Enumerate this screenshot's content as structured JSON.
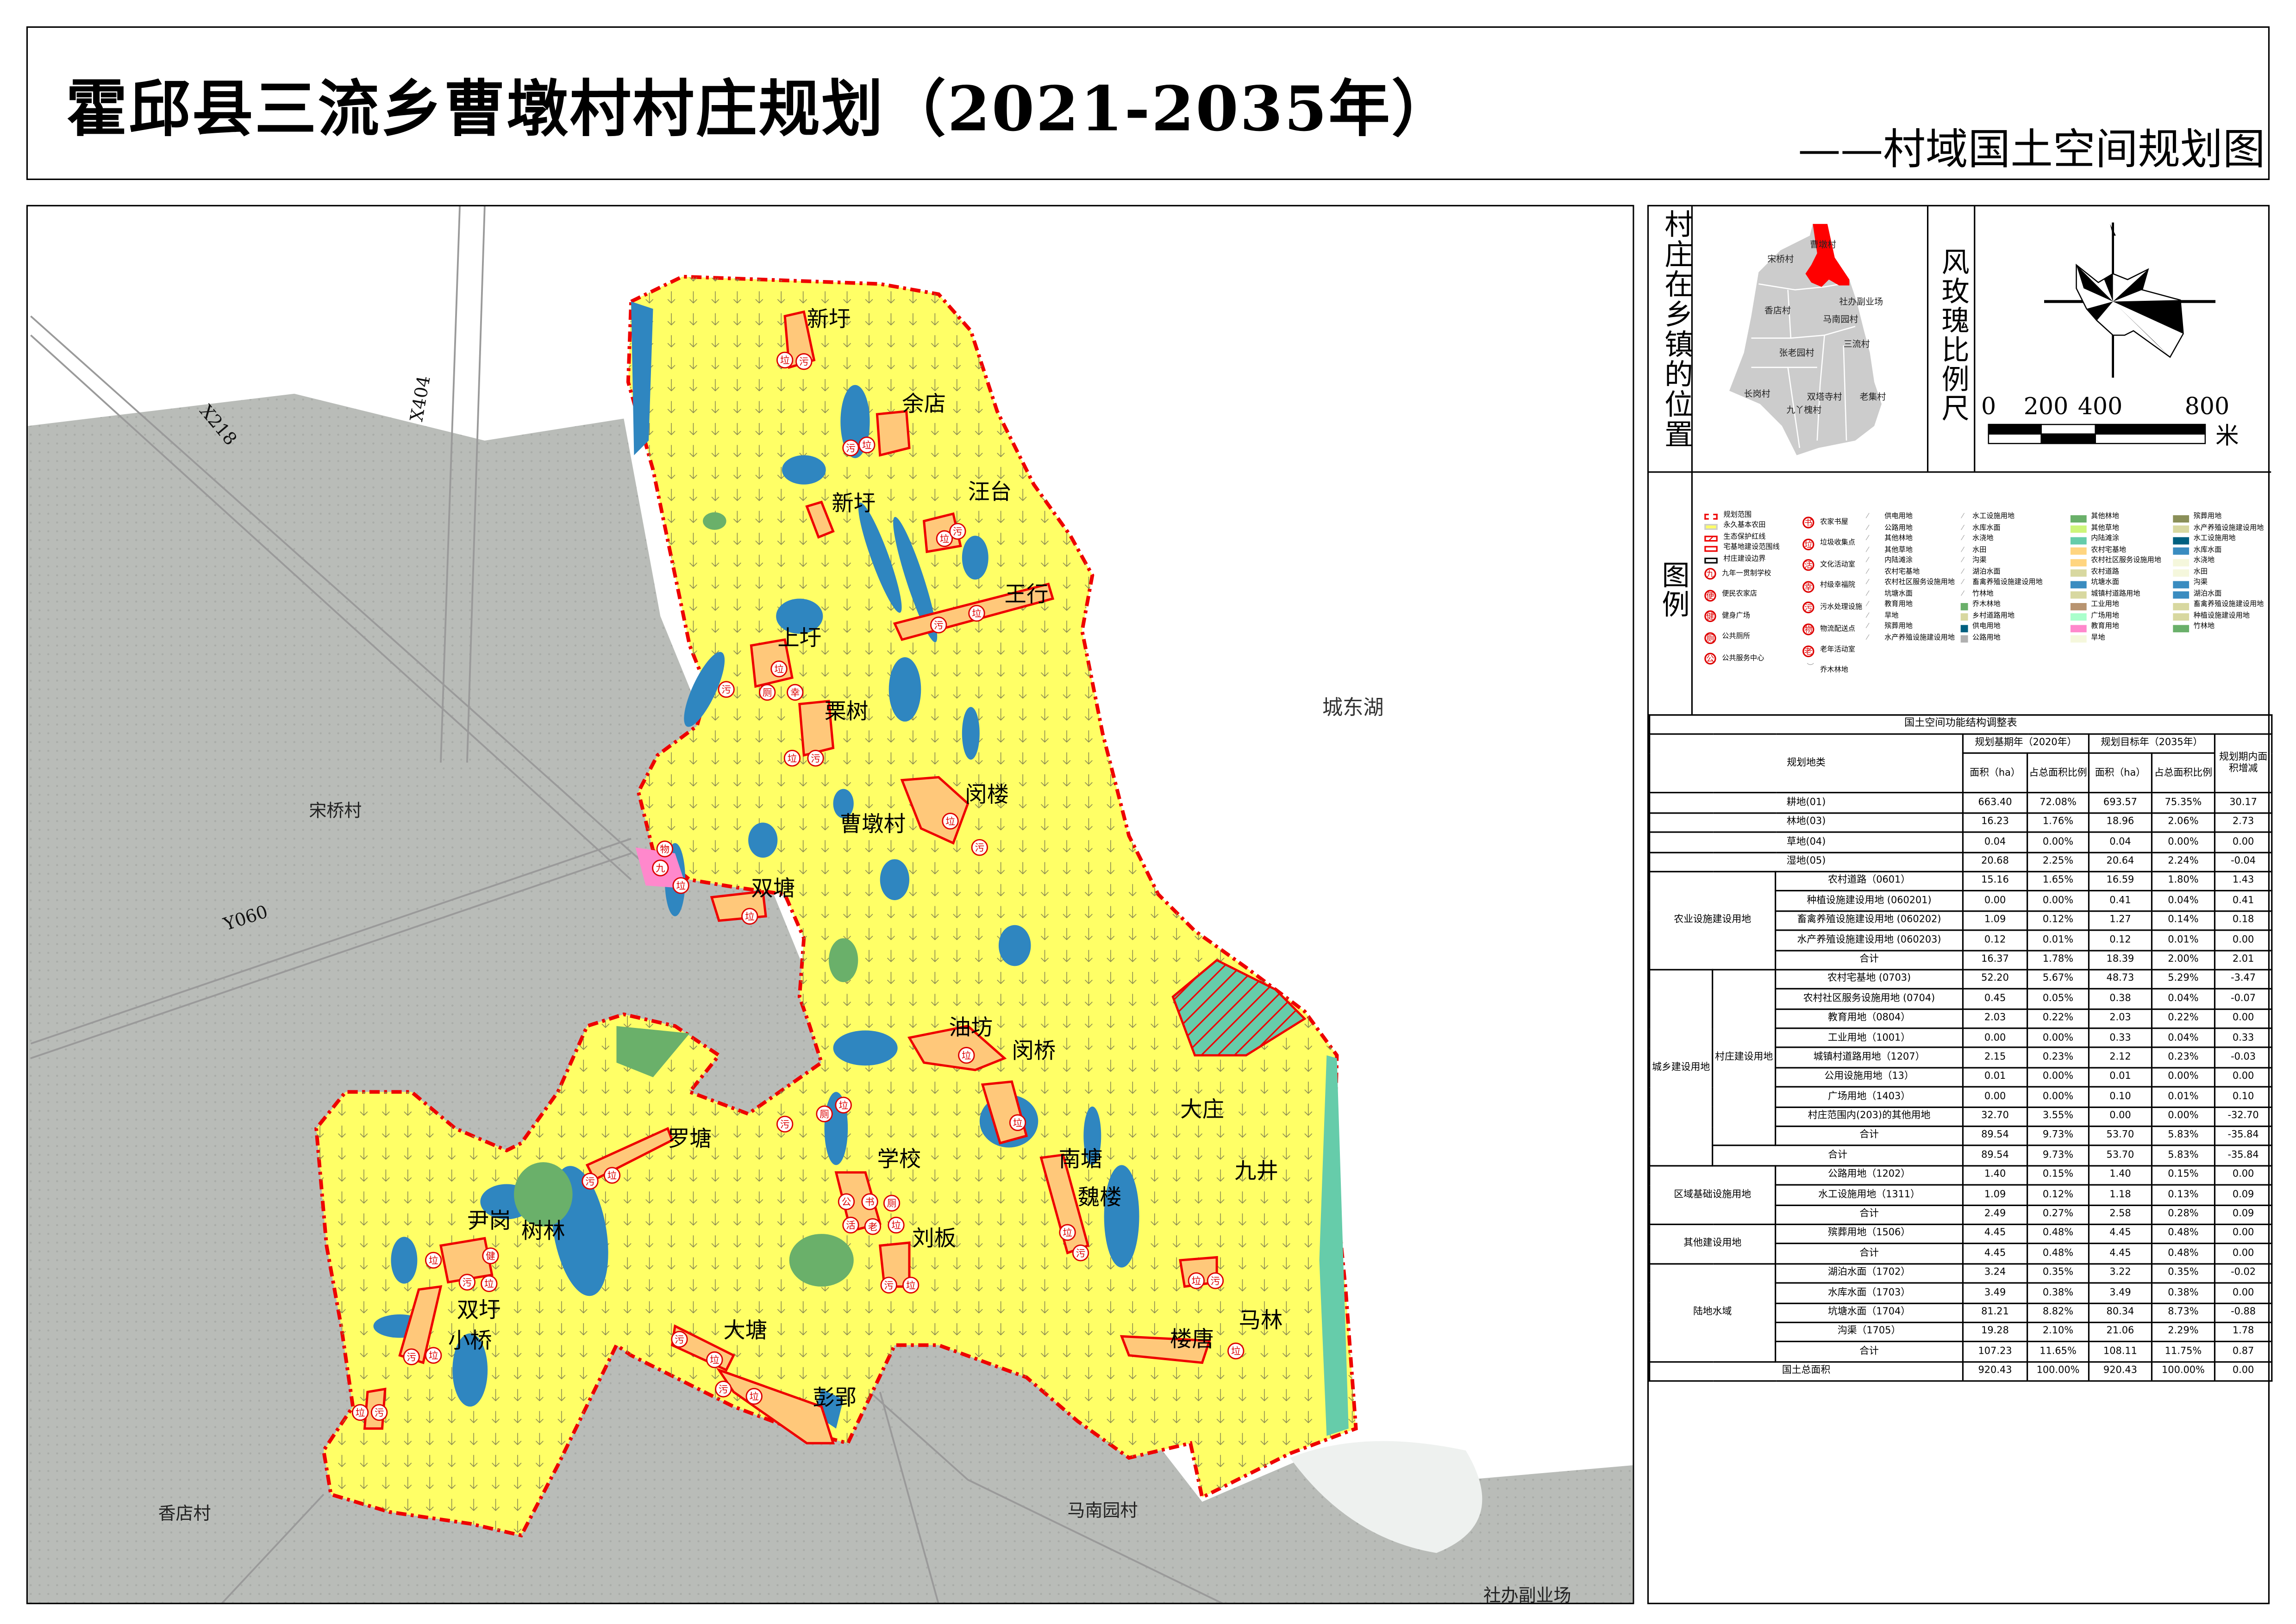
{
  "title": {
    "main": "霍邱县三流乡曹墩村村庄规划（2021-2035年）",
    "sub": "——村域国土空间规划图"
  },
  "location": {
    "label": "村庄在乡镇的位置",
    "villages": [
      "曹墩村",
      "宋桥村",
      "社办副业场",
      "香店村",
      "马南园村",
      "三流村",
      "张老园村",
      "长岗村",
      "双塔寺村",
      "老集村",
      "九丫槐村"
    ],
    "highlight_color": "#ff0000",
    "base_color": "#cccccc"
  },
  "windrose": {
    "label": "风玫瑰比例尺",
    "scale_ticks": [
      "0",
      "200",
      "400",
      "800"
    ],
    "unit": "米"
  },
  "legend": {
    "label": "图例",
    "boundaries": [
      "规划范围",
      "永久基本农田",
      "生态保护红线",
      "宅基地建设范围线",
      "村庄建设边界"
    ],
    "facilities_a": [
      {
        "char": "九",
        "label": "九年一贯制学校"
      },
      {
        "char": "便",
        "label": "便民农家店"
      },
      {
        "char": "健",
        "label": "健身广场"
      },
      {
        "char": "厕",
        "label": "公共厕所"
      },
      {
        "char": "公",
        "label": "公共服务中心"
      }
    ],
    "facilities_b": [
      {
        "char": "书",
        "label": "农家书屋"
      },
      {
        "char": "垃",
        "label": "垃圾收集点"
      },
      {
        "char": "活",
        "label": "文化活动室"
      },
      {
        "char": "幸",
        "label": "村级幸福院"
      },
      {
        "char": "污",
        "label": "污水处理设施"
      },
      {
        "char": "物",
        "label": "物流配送点"
      },
      {
        "char": "老",
        "label": "老年活动室"
      }
    ],
    "tree_forest": "乔木林地",
    "pattern_col1": [
      "供电用地",
      "公路用地",
      "其他林地",
      "其他草地",
      "内陆滩涂",
      "农村宅基地",
      "农村社区服务设施用地",
      "坑塘水面",
      "教育用地",
      "旱地",
      "殡葬用地",
      "水产养殖设施建设用地"
    ],
    "pattern_col2": [
      {
        "label": "水工设施用地"
      },
      {
        "label": "水库水面"
      },
      {
        "label": "水浇地"
      },
      {
        "label": "水田"
      },
      {
        "label": "沟渠"
      },
      {
        "label": "湖泊水面"
      },
      {
        "label": "畜禽养殖设施建设用地"
      },
      {
        "label": "竹林地"
      },
      {
        "label": "乔木林地",
        "color": "#6ab06a"
      },
      {
        "label": "乡村道路用地",
        "color": "#d8d8a0"
      },
      {
        "label": "供电用地",
        "color": "#006080"
      },
      {
        "label": "公路用地",
        "color": "#b0b0b0"
      }
    ],
    "color_col1": [
      {
        "label": "其他林地",
        "color": "#6ab06a"
      },
      {
        "label": "其他草地",
        "color": "#cdf57a"
      },
      {
        "label": "内陆滩涂",
        "color": "#66ccaa"
      },
      {
        "label": "农村宅基地",
        "color": "#ffd580"
      },
      {
        "label": "农村社区服务设施用地",
        "color": "#ffd580"
      },
      {
        "label": "农村道路",
        "color": "#d8d8a0"
      },
      {
        "label": "坑塘水面",
        "color": "#3a8cc0"
      },
      {
        "label": "城镇村道路用地",
        "color": "#d8d8a0"
      },
      {
        "label": "工业用地",
        "color": "#b89470"
      },
      {
        "label": "广场用地",
        "color": "#aaffcc"
      },
      {
        "label": "教育用地",
        "color": "#ff88cc"
      },
      {
        "label": "旱地",
        "color": "#f5f7dc"
      }
    ],
    "color_col2": [
      {
        "label": "殡葬用地",
        "color": "#8a8f58"
      },
      {
        "label": "水产养殖设施建设用地",
        "color": "#d8d8a0"
      },
      {
        "label": "水工设施用地",
        "color": "#006080"
      },
      {
        "label": "水库水面",
        "color": "#3a8cc0"
      },
      {
        "label": "水浇地",
        "color": "#f5f7dc"
      },
      {
        "label": "水田",
        "color": "#f5f7dc"
      },
      {
        "label": "沟渠",
        "color": "#3a8cc0"
      },
      {
        "label": "湖泊水面",
        "color": "#3a8cc0"
      },
      {
        "label": "畜禽养殖设施建设用地",
        "color": "#d8d8a0"
      },
      {
        "label": "种植设施建设用地",
        "color": "#d8d8a0"
      },
      {
        "label": "竹林地",
        "color": "#6ab06a"
      }
    ]
  },
  "map": {
    "settlements": [
      "新圩",
      "余店",
      "新圩",
      "汪台",
      "王行",
      "上圩",
      "栗树",
      "曹墩村",
      "闵楼",
      "双塘",
      "油坊",
      "闵桥",
      "大庄",
      "九井",
      "南塘",
      "魏楼",
      "学校",
      "刘板",
      "罗塘",
      "树林",
      "尹岗",
      "双圩",
      "小桥",
      "大塘",
      "彭郢",
      "楼唐",
      "马林"
    ],
    "neighbors": [
      "宋桥村",
      "香店村",
      "马南园村",
      "社办副业场"
    ],
    "lake": "城东湖",
    "roads": [
      "X218",
      "X404",
      "Y060"
    ],
    "markers": [
      "垃",
      "污",
      "污",
      "垃",
      "垃",
      "污",
      "垃",
      "污",
      "垃",
      "污",
      "厕",
      "幸",
      "垃",
      "污",
      "垃",
      "污",
      "物",
      "九",
      "垃",
      "垃",
      "垃",
      "垃",
      "垃",
      "污",
      "垃",
      "污",
      "垃",
      "公",
      "书",
      "厕",
      "活",
      "老",
      "垃",
      "污",
      "垃",
      "污",
      "垃",
      "污",
      "厕",
      "垃",
      "垃",
      "健",
      "污",
      "垃",
      "污",
      "垃",
      "垃",
      "污",
      "污",
      "垃",
      "污",
      "垃"
    ],
    "colors": {
      "farmland": "#ffff66",
      "boundary": "#ee0000",
      "water": "#2f86c0",
      "settlement": "#ffc87a",
      "forest": "#6ab06a",
      "satellite": "#b9bcb8"
    }
  },
  "table": {
    "title": "国土空间功能结构调整表",
    "header": {
      "category": "规划地类",
      "base_year": "规划基期年（2020年）",
      "target_year": "规划目标年（2035年）",
      "change": "规划期内面积增减",
      "area": "面积（ha）",
      "ratio": "占总面积比例"
    },
    "rows": [
      {
        "group": "",
        "sub": "",
        "name": "耕地(01)",
        "v": [
          "663.40",
          "72.08%",
          "693.57",
          "75.35%",
          "30.17"
        ]
      },
      {
        "group": "",
        "sub": "",
        "name": "林地(03)",
        "v": [
          "16.23",
          "1.76%",
          "18.96",
          "2.06%",
          "2.73"
        ]
      },
      {
        "group": "",
        "sub": "",
        "name": "草地(04)",
        "v": [
          "0.04",
          "0.00%",
          "0.04",
          "0.00%",
          "0.00"
        ]
      },
      {
        "group": "",
        "sub": "",
        "name": "湿地(05)",
        "v": [
          "20.68",
          "2.25%",
          "20.64",
          "2.24%",
          "-0.04"
        ]
      },
      {
        "group": "农业设施建设用地",
        "sub": "",
        "name": "农村道路（0601）",
        "v": [
          "15.16",
          "1.65%",
          "16.59",
          "1.80%",
          "1.43"
        ]
      },
      {
        "group": "农业设施建设用地",
        "sub": "",
        "name": "种植设施建设用地 (060201)",
        "v": [
          "0.00",
          "0.00%",
          "0.41",
          "0.04%",
          "0.41"
        ]
      },
      {
        "group": "农业设施建设用地",
        "sub": "",
        "name": "畜禽养殖设施建设用地 (060202)",
        "v": [
          "1.09",
          "0.12%",
          "1.27",
          "0.14%",
          "0.18"
        ]
      },
      {
        "group": "农业设施建设用地",
        "sub": "",
        "name": "水产养殖设施建设用地 (060203)",
        "v": [
          "0.12",
          "0.01%",
          "0.12",
          "0.01%",
          "0.00"
        ]
      },
      {
        "group": "农业设施建设用地",
        "sub": "",
        "name": "合计",
        "v": [
          "16.37",
          "1.78%",
          "18.39",
          "2.00%",
          "2.01"
        ]
      },
      {
        "group": "城乡建设用地",
        "sub": "村庄建设用地",
        "name": "农村宅基地 (0703)",
        "v": [
          "52.20",
          "5.67%",
          "48.73",
          "5.29%",
          "-3.47"
        ]
      },
      {
        "group": "城乡建设用地",
        "sub": "村庄建设用地",
        "name": "农村社区服务设施用地 (0704)",
        "v": [
          "0.45",
          "0.05%",
          "0.38",
          "0.04%",
          "-0.07"
        ]
      },
      {
        "group": "城乡建设用地",
        "sub": "村庄建设用地",
        "name": "教育用地（0804）",
        "v": [
          "2.03",
          "0.22%",
          "2.03",
          "0.22%",
          "0.00"
        ]
      },
      {
        "group": "城乡建设用地",
        "sub": "村庄建设用地",
        "name": "工业用地（1001）",
        "v": [
          "0.00",
          "0.00%",
          "0.33",
          "0.04%",
          "0.33"
        ]
      },
      {
        "group": "城乡建设用地",
        "sub": "村庄建设用地",
        "name": "城镇村道路用地（1207）",
        "v": [
          "2.15",
          "0.23%",
          "2.12",
          "0.23%",
          "-0.03"
        ]
      },
      {
        "group": "城乡建设用地",
        "sub": "村庄建设用地",
        "name": "公用设施用地（13）",
        "v": [
          "0.01",
          "0.00%",
          "0.01",
          "0.00%",
          "0.00"
        ]
      },
      {
        "group": "城乡建设用地",
        "sub": "村庄建设用地",
        "name": "广场用地（1403）",
        "v": [
          "0.00",
          "0.00%",
          "0.10",
          "0.01%",
          "0.10"
        ]
      },
      {
        "group": "城乡建设用地",
        "sub": "村庄建设用地",
        "name": "村庄范围内(203)的其他用地",
        "v": [
          "32.70",
          "3.55%",
          "0.00",
          "0.00%",
          "-32.70"
        ]
      },
      {
        "group": "城乡建设用地",
        "sub": "村庄建设用地",
        "name": "合计",
        "v": [
          "89.54",
          "9.73%",
          "53.70",
          "5.83%",
          "-35.84"
        ]
      },
      {
        "group": "城乡建设用地",
        "sub": "",
        "name": "合计",
        "v": [
          "89.54",
          "9.73%",
          "53.70",
          "5.83%",
          "-35.84"
        ]
      },
      {
        "group": "区域基础设施用地",
        "sub": "",
        "name": "公路用地（1202）",
        "v": [
          "1.40",
          "0.15%",
          "1.40",
          "0.15%",
          "0.00"
        ]
      },
      {
        "group": "区域基础设施用地",
        "sub": "",
        "name": "水工设施用地（1311）",
        "v": [
          "1.09",
          "0.12%",
          "1.18",
          "0.13%",
          "0.09"
        ]
      },
      {
        "group": "区域基础设施用地",
        "sub": "",
        "name": "合计",
        "v": [
          "2.49",
          "0.27%",
          "2.58",
          "0.28%",
          "0.09"
        ]
      },
      {
        "group": "其他建设用地",
        "sub": "",
        "name": "殡葬用地（1506）",
        "v": [
          "4.45",
          "0.48%",
          "4.45",
          "0.48%",
          "0.00"
        ]
      },
      {
        "group": "其他建设用地",
        "sub": "",
        "name": "合计",
        "v": [
          "4.45",
          "0.48%",
          "4.45",
          "0.48%",
          "0.00"
        ]
      },
      {
        "group": "陆地水域",
        "sub": "",
        "name": "湖泊水面（1702）",
        "v": [
          "3.24",
          "0.35%",
          "3.22",
          "0.35%",
          "-0.02"
        ]
      },
      {
        "group": "陆地水域",
        "sub": "",
        "name": "水库水面（1703）",
        "v": [
          "3.49",
          "0.38%",
          "3.49",
          "0.38%",
          "0.00"
        ]
      },
      {
        "group": "陆地水域",
        "sub": "",
        "name": "坑塘水面（1704）",
        "v": [
          "81.21",
          "8.82%",
          "80.34",
          "8.73%",
          "-0.88"
        ]
      },
      {
        "group": "陆地水域",
        "sub": "",
        "name": "沟渠（1705）",
        "v": [
          "19.28",
          "2.10%",
          "21.06",
          "2.29%",
          "1.78"
        ]
      },
      {
        "group": "陆地水域",
        "sub": "",
        "name": "合计",
        "v": [
          "107.23",
          "11.65%",
          "108.11",
          "11.75%",
          "0.87"
        ]
      },
      {
        "group": "",
        "sub": "",
        "name": "国土总面积",
        "v": [
          "920.43",
          "100.00%",
          "920.43",
          "100.00%",
          "0.00"
        ]
      }
    ]
  }
}
